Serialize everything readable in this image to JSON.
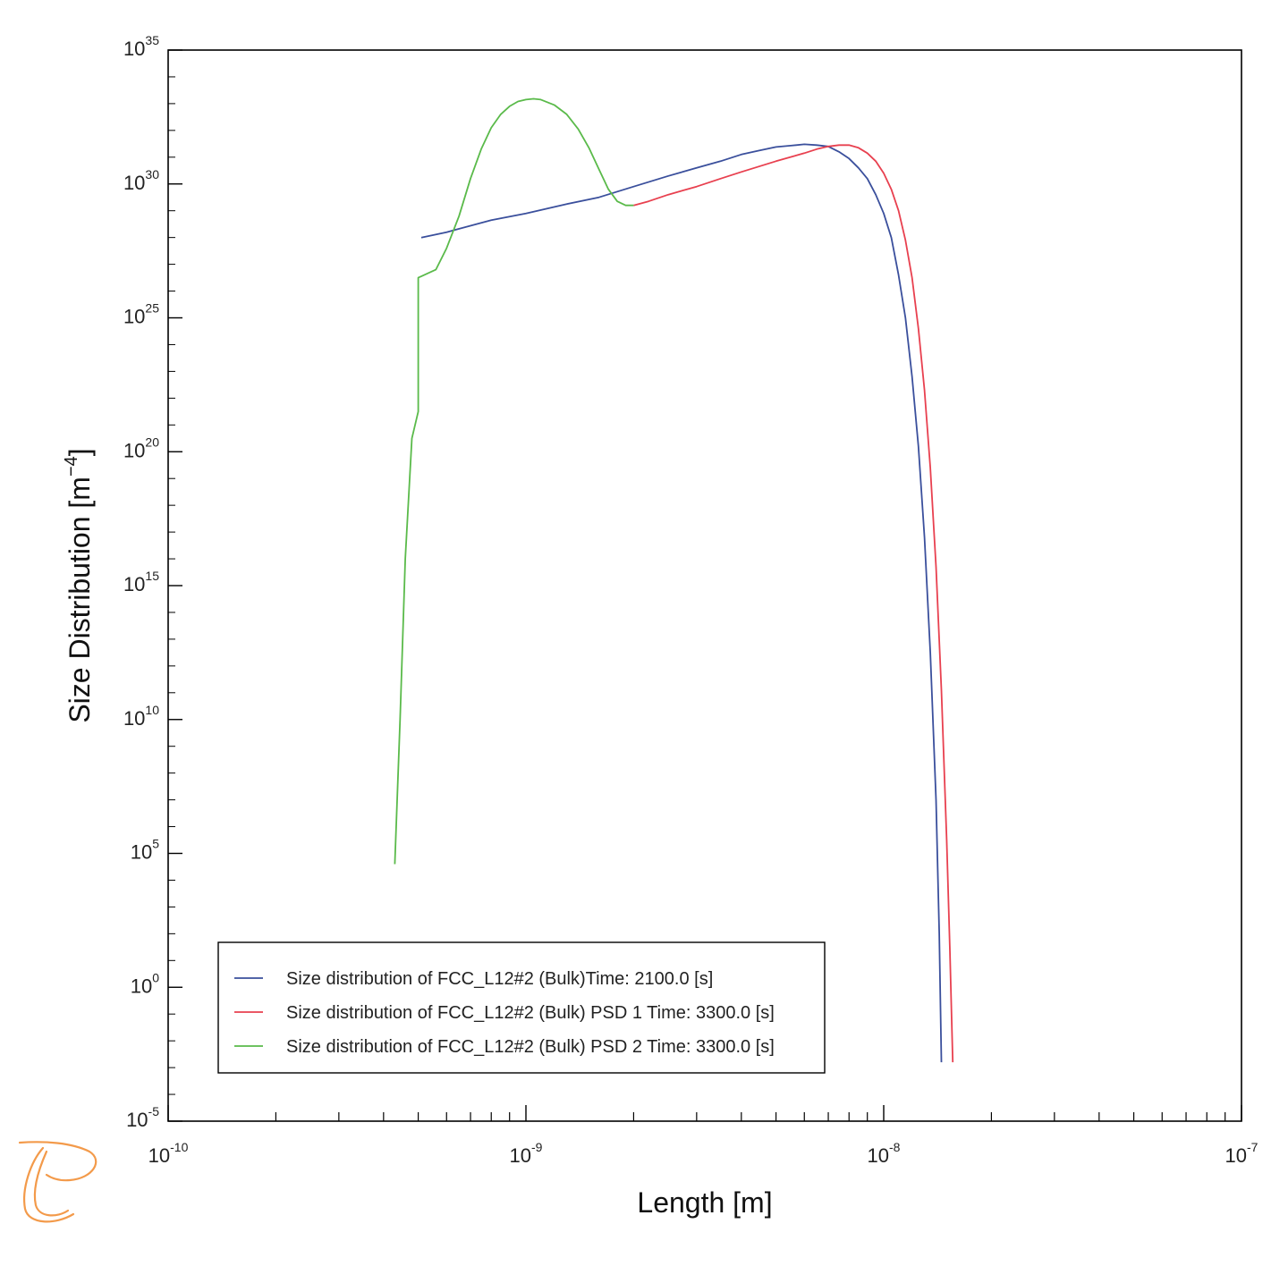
{
  "chart_data": {
    "type": "line",
    "xlabel": "Length [m]",
    "ylabel": "Size Distribution [m",
    "ylabel_sup": "−4",
    "ylabel_suffix": "]",
    "x_scale": "log",
    "y_scale": "log",
    "xlim": [
      1e-10,
      1e-07
    ],
    "ylim_exp": [
      -5,
      35
    ],
    "grid": false,
    "legend_position": "bottom-left",
    "x_ticks": [
      {
        "base": "10",
        "exp": "-10",
        "value": 1e-10
      },
      {
        "base": "10",
        "exp": "-9",
        "value": 1e-09
      },
      {
        "base": "10",
        "exp": "-8",
        "value": 1e-08
      },
      {
        "base": "10",
        "exp": "-7",
        "value": 1e-07
      }
    ],
    "y_ticks": [
      {
        "base": "10",
        "exp": "35",
        "value_exp": 35
      },
      {
        "base": "10",
        "exp": "30",
        "value_exp": 30
      },
      {
        "base": "10",
        "exp": "25",
        "value_exp": 25
      },
      {
        "base": "10",
        "exp": "20",
        "value_exp": 20
      },
      {
        "base": "10",
        "exp": "15",
        "value_exp": 15
      },
      {
        "base": "10",
        "exp": "10",
        "value_exp": 10
      },
      {
        "base": "10",
        "exp": "5",
        "value_exp": 5
      },
      {
        "base": "10",
        "exp": "0",
        "value_exp": 0
      },
      {
        "base": "10",
        "exp": "-5",
        "value_exp": -5
      }
    ],
    "series": [
      {
        "name": "Size distribution of FCC_L12#2 (Bulk)Time: 2100.0  [s]",
        "color": "#3a4f9c",
        "points": [
          [
            5.1e-10,
            28.0
          ],
          [
            6e-10,
            28.2
          ],
          [
            8e-10,
            28.65
          ],
          [
            1e-09,
            28.9
          ],
          [
            1.3e-09,
            29.25
          ],
          [
            1.6e-09,
            29.5
          ],
          [
            2e-09,
            29.9
          ],
          [
            2.5e-09,
            30.3
          ],
          [
            3e-09,
            30.6
          ],
          [
            3.5e-09,
            30.85
          ],
          [
            4e-09,
            31.1
          ],
          [
            4.5e-09,
            31.25
          ],
          [
            5e-09,
            31.38
          ],
          [
            5.5e-09,
            31.43
          ],
          [
            6e-09,
            31.48
          ],
          [
            6.5e-09,
            31.45
          ],
          [
            7e-09,
            31.4
          ],
          [
            7.5e-09,
            31.2
          ],
          [
            8e-09,
            30.95
          ],
          [
            8.5e-09,
            30.6
          ],
          [
            9e-09,
            30.2
          ],
          [
            9.5e-09,
            29.6
          ],
          [
            1e-08,
            28.9
          ],
          [
            1.05e-08,
            28.0
          ],
          [
            1.1e-08,
            26.6
          ],
          [
            1.15e-08,
            25.0
          ],
          [
            1.2e-08,
            22.8
          ],
          [
            1.25e-08,
            20.2
          ],
          [
            1.3e-08,
            16.8
          ],
          [
            1.35e-08,
            12.5
          ],
          [
            1.4e-08,
            7.0
          ],
          [
            1.43e-08,
            2.0
          ],
          [
            1.45e-08,
            -2.8
          ]
        ]
      },
      {
        "name": "Size distribution of FCC_L12#2 (Bulk) PSD 1 Time: 3300.0  [s]",
        "color": "#e8404f",
        "points": [
          [
            2e-09,
            29.2
          ],
          [
            2.2e-09,
            29.35
          ],
          [
            2.5e-09,
            29.6
          ],
          [
            3e-09,
            29.9
          ],
          [
            3.5e-09,
            30.2
          ],
          [
            4e-09,
            30.45
          ],
          [
            5e-09,
            30.85
          ],
          [
            6e-09,
            31.15
          ],
          [
            6.5e-09,
            31.3
          ],
          [
            7e-09,
            31.4
          ],
          [
            7.5e-09,
            31.45
          ],
          [
            8e-09,
            31.45
          ],
          [
            8.5e-09,
            31.35
          ],
          [
            9e-09,
            31.15
          ],
          [
            9.5e-09,
            30.85
          ],
          [
            1e-08,
            30.4
          ],
          [
            1.05e-08,
            29.8
          ],
          [
            1.1e-08,
            29.0
          ],
          [
            1.15e-08,
            27.9
          ],
          [
            1.2e-08,
            26.5
          ],
          [
            1.25e-08,
            24.6
          ],
          [
            1.3e-08,
            22.3
          ],
          [
            1.35e-08,
            19.4
          ],
          [
            1.4e-08,
            15.7
          ],
          [
            1.45e-08,
            11.1
          ],
          [
            1.5e-08,
            5.5
          ],
          [
            1.53e-08,
            1.5
          ],
          [
            1.56e-08,
            -2.8
          ]
        ]
      },
      {
        "name": "Size distribution of FCC_L12#2 (Bulk) PSD 2 Time: 3300.0  [s]",
        "color": "#5aba4a",
        "points": [
          [
            4.3e-10,
            4.6
          ],
          [
            4.45e-10,
            10.0
          ],
          [
            4.6e-10,
            16.0
          ],
          [
            4.8e-10,
            20.5
          ],
          [
            5e-10,
            21.5
          ],
          [
            5e-10,
            26.5
          ],
          [
            5.1e-10,
            26.55
          ],
          [
            5.6e-10,
            26.8
          ],
          [
            6e-10,
            27.6
          ],
          [
            6.5e-10,
            28.8
          ],
          [
            7e-10,
            30.2
          ],
          [
            7.5e-10,
            31.3
          ],
          [
            8e-10,
            32.1
          ],
          [
            8.5e-10,
            32.6
          ],
          [
            9e-10,
            32.9
          ],
          [
            9.5e-10,
            33.08
          ],
          [
            1e-09,
            33.15
          ],
          [
            1.05e-09,
            33.18
          ],
          [
            1.1e-09,
            33.15
          ],
          [
            1.2e-09,
            32.95
          ],
          [
            1.3e-09,
            32.6
          ],
          [
            1.4e-09,
            32.05
          ],
          [
            1.5e-09,
            31.35
          ],
          [
            1.6e-09,
            30.55
          ],
          [
            1.7e-09,
            29.8
          ],
          [
            1.8e-09,
            29.35
          ],
          [
            1.9e-09,
            29.2
          ],
          [
            2e-09,
            29.2
          ]
        ]
      }
    ]
  },
  "logo": {
    "name": "thermo-calc-logo",
    "color": "#f39a4a"
  }
}
